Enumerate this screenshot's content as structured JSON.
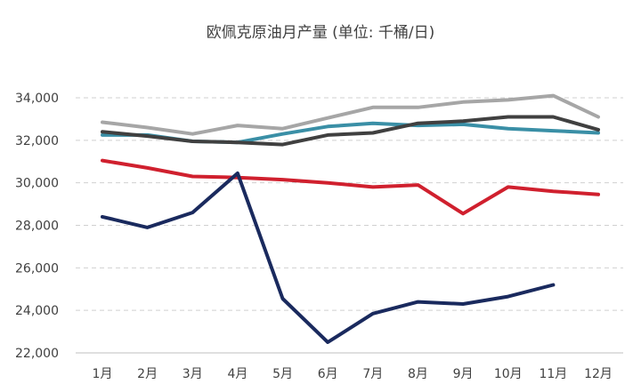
{
  "chart_data": {
    "type": "line",
    "title": "欧佩克原油月产量 (单位: 千桶/日)",
    "xlabel": "",
    "ylabel": "",
    "categories": [
      "1月",
      "2月",
      "3月",
      "4月",
      "5月",
      "6月",
      "7月",
      "8月",
      "9月",
      "10月",
      "11月",
      "12月"
    ],
    "yticks": [
      "22,000",
      "24,000",
      "26,000",
      "28,000",
      "30,000",
      "32,000",
      "34,000"
    ],
    "ylim": [
      22000,
      34000
    ],
    "grid": true,
    "legend": "none",
    "series": [
      {
        "color": "#a6a6a6",
        "values": [
          32850,
          32600,
          32300,
          32700,
          32550,
          33050,
          33550,
          33550,
          33800,
          33900,
          34100,
          33100
        ]
      },
      {
        "color": "#3a8fa6",
        "values": [
          32250,
          32250,
          31950,
          31900,
          32300,
          32650,
          32800,
          32700,
          32750,
          32550,
          32450,
          32350
        ]
      },
      {
        "color": "#404040",
        "values": [
          32400,
          32200,
          31950,
          31900,
          31800,
          32250,
          32350,
          32800,
          32900,
          33100,
          33100,
          32500
        ]
      },
      {
        "color": "#d0202e",
        "values": [
          31050,
          30700,
          30300,
          30250,
          30150,
          30000,
          29800,
          29900,
          28550,
          29800,
          29600,
          29450
        ]
      },
      {
        "color": "#1a2a5e",
        "values": [
          28400,
          27900,
          28600,
          30450,
          24550,
          22500,
          23850,
          24400,
          24300,
          24650,
          25200,
          null
        ]
      }
    ]
  }
}
